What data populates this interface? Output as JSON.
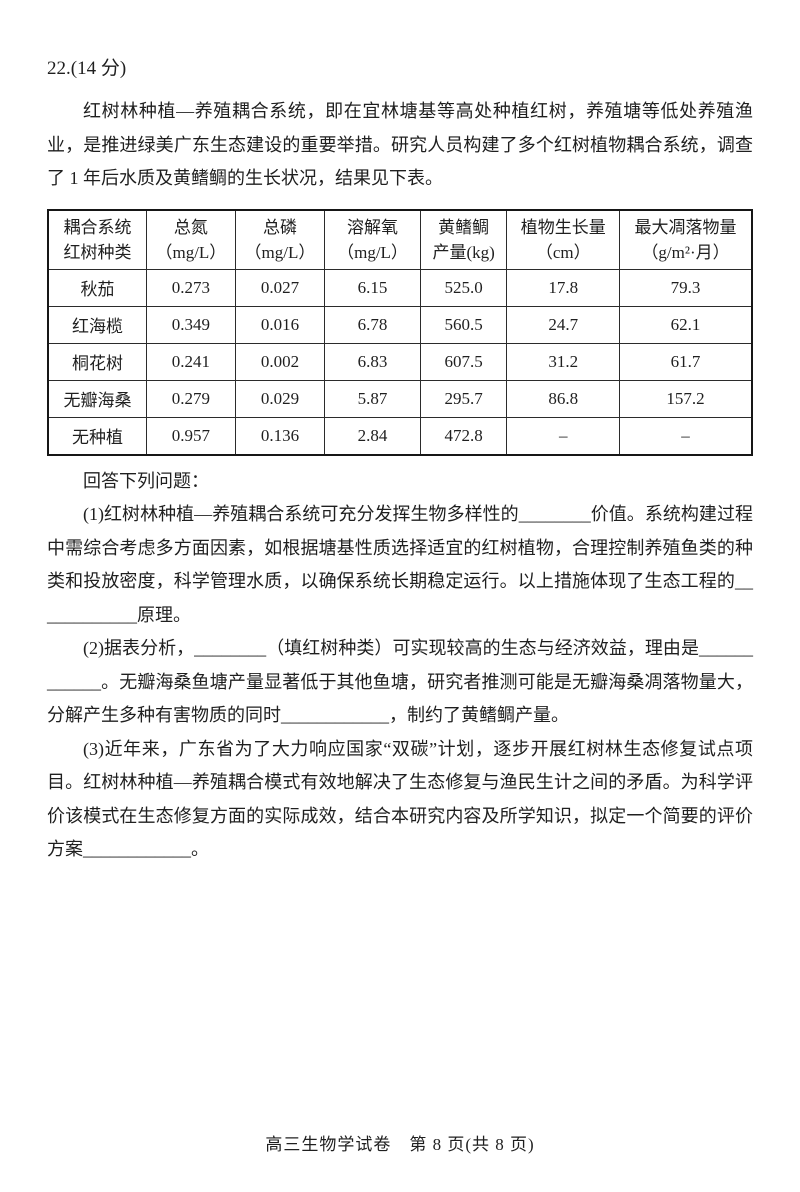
{
  "question": {
    "number_line": "22.(14 分)",
    "intro": "红树林种植—养殖耦合系统，即在宜林塘基等高处种植红树，养殖塘等低处养殖渔业，是推进绿美广东生态建设的重要举措。研究人员构建了多个红树植物耦合系统，调查了 1 年后水质及黄鳍鲷的生长状况，结果见下表。",
    "answer_prompt": "回答下列问题：",
    "part1": "(1)红树林种植—养殖耦合系统可充分发挥生物多样性的________价值。系统构建过程中需综合考虑多方面因素，如根据塘基性质选择适宜的红树植物，合理控制养殖鱼类的种类和投放密度，科学管理水质，以确保系统长期稳定运行。以上措施体现了生态工程的____________原理。",
    "part2": "(2)据表分析，________（填红树种类）可实现较高的生态与经济效益，理由是____________。无瓣海桑鱼塘产量显著低于其他鱼塘，研究者推测可能是无瓣海桑凋落物量大，分解产生多种有害物质的同时____________，制约了黄鳍鲷产量。",
    "part3": "(3)近年来，广东省为了大力响应国家“双碳”计划，逐步开展红树林生态修复试点项目。红树林种植—养殖耦合模式有效地解决了生态修复与渔民生计之间的矛盾。为科学评价该模式在生态修复方面的实际成效，结合本研究内容及所学知识，拟定一个简要的评价方案____________。"
  },
  "table": {
    "headers": [
      [
        "耦合系统",
        "红树种类"
      ],
      [
        "总氮",
        "（mg/L）"
      ],
      [
        "总磷",
        "（mg/L）"
      ],
      [
        "溶解氧",
        "（mg/L）"
      ],
      [
        "黄鳍鲷",
        "产量(kg)"
      ],
      [
        "植物生长量",
        "（cm）"
      ],
      [
        "最大凋落物量",
        "（g/m²·月）"
      ]
    ],
    "rows": [
      [
        "秋茄",
        "0.273",
        "0.027",
        "6.15",
        "525.0",
        "17.8",
        "79.3"
      ],
      [
        "红海榄",
        "0.349",
        "0.016",
        "6.78",
        "560.5",
        "24.7",
        "62.1"
      ],
      [
        "桐花树",
        "0.241",
        "0.002",
        "6.83",
        "607.5",
        "31.2",
        "61.7"
      ],
      [
        "无瓣海桑",
        "0.279",
        "0.029",
        "5.87",
        "295.7",
        "86.8",
        "157.2"
      ],
      [
        "无种植",
        "0.957",
        "0.136",
        "2.84",
        "472.8",
        "–",
        "–"
      ]
    ]
  },
  "footer": {
    "text": "高三生物学试卷　第 8 页(共 8 页)"
  }
}
